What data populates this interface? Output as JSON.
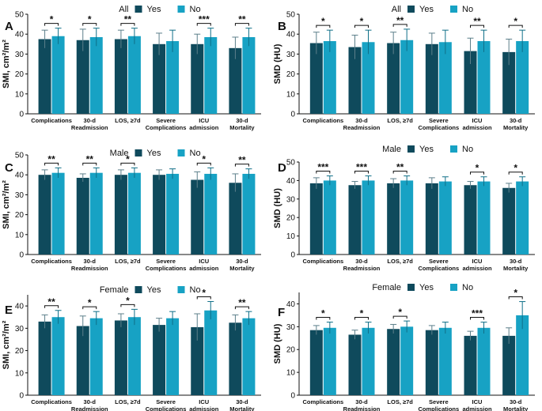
{
  "chart_data": [
    {
      "panel": "A",
      "type": "bar",
      "legend_title": "All",
      "ylabel": "SMI, cm²/m²",
      "ylim": [
        0,
        50
      ],
      "yticks": [
        0,
        10,
        20,
        30,
        40,
        50
      ],
      "categories": [
        [
          "Complications"
        ],
        [
          "30-d",
          "Readmission"
        ],
        [
          "LOS, ≥7d"
        ],
        [
          "Severe",
          "Complications"
        ],
        [
          "ICU",
          "admission"
        ],
        [
          "30-d",
          "Mortality"
        ]
      ],
      "series": [
        {
          "name": "Yes",
          "color": "#0f4a5c",
          "values": [
            37.5,
            37,
            37.5,
            35,
            35,
            33
          ],
          "errors": [
            4.5,
            5.5,
            4.5,
            5.5,
            5,
            5.5
          ]
        },
        {
          "name": "No",
          "color": "#17a2c4",
          "values": [
            39,
            38.5,
            39,
            36.5,
            38.5,
            38.5
          ],
          "errors": [
            4,
            4.5,
            4,
            5.5,
            4.5,
            4.5
          ]
        }
      ],
      "significance": [
        "*",
        "*",
        "**",
        "",
        "***",
        "**"
      ]
    },
    {
      "panel": "B",
      "type": "bar",
      "legend_title": "All",
      "ylabel": "SMD (HU)",
      "ylim": [
        0,
        50
      ],
      "yticks": [
        0,
        10,
        20,
        30,
        40,
        50
      ],
      "categories": [
        [
          "Complications"
        ],
        [
          "30-d",
          "Readmission"
        ],
        [
          "LOS, ≥7d"
        ],
        [
          "Severe",
          "Complications"
        ],
        [
          "ICU",
          "admission"
        ],
        [
          "30-d",
          "Mortality"
        ]
      ],
      "series": [
        {
          "name": "Yes",
          "color": "#0f4a5c",
          "values": [
            35.5,
            33.5,
            35.5,
            35,
            31.5,
            31
          ],
          "errors": [
            5.5,
            6,
            5.5,
            5.5,
            6.5,
            6.5
          ]
        },
        {
          "name": "No",
          "color": "#17a2c4",
          "values": [
            36.5,
            36,
            37,
            36,
            36.5,
            36.5
          ],
          "errors": [
            5.5,
            6,
            5.5,
            6,
            5.5,
            5.5
          ]
        }
      ],
      "significance": [
        "*",
        "*",
        "**",
        "",
        "**",
        "*"
      ]
    },
    {
      "panel": "C",
      "type": "bar",
      "legend_title": "Male",
      "ylabel": "SMI, cm²/m²",
      "ylim": [
        0,
        50
      ],
      "yticks": [
        0,
        10,
        20,
        30,
        40,
        50
      ],
      "categories": [
        [
          "Complications"
        ],
        [
          "30-d",
          "Readmission"
        ],
        [
          "LOS, ≥7d"
        ],
        [
          "Severe",
          "Complications"
        ],
        [
          "ICU",
          "admission"
        ],
        [
          "30-d",
          "Mortality"
        ]
      ],
      "series": [
        {
          "name": "Yes",
          "color": "#0f4a5c",
          "values": [
            40,
            38.5,
            40,
            40,
            37.5,
            36
          ],
          "errors": [
            2.5,
            2,
            2.5,
            2.5,
            4,
            4.5
          ]
        },
        {
          "name": "No",
          "color": "#17a2c4",
          "values": [
            41,
            41,
            41,
            40.5,
            40.5,
            40.5
          ],
          "errors": [
            2.5,
            2.5,
            2.5,
            2.5,
            3,
            2.5
          ]
        }
      ],
      "significance": [
        "**",
        "**",
        "*",
        "",
        "*",
        "**"
      ]
    },
    {
      "panel": "D",
      "type": "bar",
      "legend_title": "Male",
      "ylabel": "SMD (HU)",
      "ylim": [
        0,
        50
      ],
      "yticks": [
        0,
        10,
        20,
        30,
        40,
        50
      ],
      "categories": [
        [
          "Complications"
        ],
        [
          "30-d",
          "Readmission"
        ],
        [
          "LOS, ≥7d"
        ],
        [
          "Severe",
          "Complications"
        ],
        [
          "ICU",
          "admission"
        ],
        [
          "30-d",
          "Mortality"
        ]
      ],
      "series": [
        {
          "name": "Yes",
          "color": "#0f4a5c",
          "values": [
            38.5,
            37.5,
            38.5,
            38.5,
            37.5,
            36
          ],
          "errors": [
            3,
            2,
            2.5,
            3,
            2,
            2.5
          ]
        },
        {
          "name": "No",
          "color": "#17a2c4",
          "values": [
            40,
            40,
            40,
            39.5,
            39.5,
            39.5
          ],
          "errors": [
            2.5,
            2.5,
            2.5,
            2.5,
            2.5,
            2.5
          ]
        }
      ],
      "significance": [
        "***",
        "***",
        "**",
        "",
        "*",
        "*"
      ]
    },
    {
      "panel": "E",
      "type": "bar",
      "legend_title": "Female",
      "ylabel": "SMI, cm²/m²",
      "ylim": [
        0,
        45
      ],
      "yticks": [
        0,
        10,
        20,
        30,
        40
      ],
      "categories": [
        [
          "Complications"
        ],
        [
          "30-d",
          "Readmission"
        ],
        [
          "LOS, ≥7d"
        ],
        [
          "Severe",
          "Complications"
        ],
        [
          "ICU",
          "admission"
        ],
        [
          "30-d",
          "Mortality"
        ]
      ],
      "series": [
        {
          "name": "Yes",
          "color": "#0f4a5c",
          "values": [
            33,
            31,
            33.5,
            31.5,
            30.5,
            32.5
          ],
          "errors": [
            3,
            4.5,
            3,
            3,
            6,
            3.5
          ]
        },
        {
          "name": "No",
          "color": "#17a2c4",
          "values": [
            35,
            34.5,
            35,
            34.5,
            38,
            34.5
          ],
          "errors": [
            3,
            3,
            3.5,
            3,
            4,
            3
          ]
        }
      ],
      "significance": [
        "**",
        "*",
        "*",
        "",
        "*",
        "**"
      ]
    },
    {
      "panel": "F",
      "type": "bar",
      "legend_title": "Female",
      "ylabel": "SMD (HU)",
      "ylim": [
        0,
        45
      ],
      "yticks": [
        0,
        10,
        20,
        30,
        40
      ],
      "categories": [
        [
          "Complications"
        ],
        [
          "30-d",
          "Readmission"
        ],
        [
          "LOS, ≥7d"
        ],
        [
          "Severe",
          "Complications"
        ],
        [
          "ICU",
          "admission"
        ],
        [
          "30-d",
          "Mortality"
        ]
      ],
      "series": [
        {
          "name": "Yes",
          "color": "#0f4a5c",
          "values": [
            28.5,
            26.5,
            29,
            28.5,
            26,
            26
          ],
          "errors": [
            2,
            2,
            2,
            2,
            2,
            3.5
          ]
        },
        {
          "name": "No",
          "color": "#17a2c4",
          "values": [
            29.5,
            29.5,
            30,
            29.5,
            29.5,
            35
          ],
          "errors": [
            2.5,
            2.5,
            2.5,
            2.5,
            2.5,
            6
          ]
        }
      ],
      "significance": [
        "*",
        "*",
        "*",
        "",
        "***",
        "*"
      ]
    }
  ]
}
